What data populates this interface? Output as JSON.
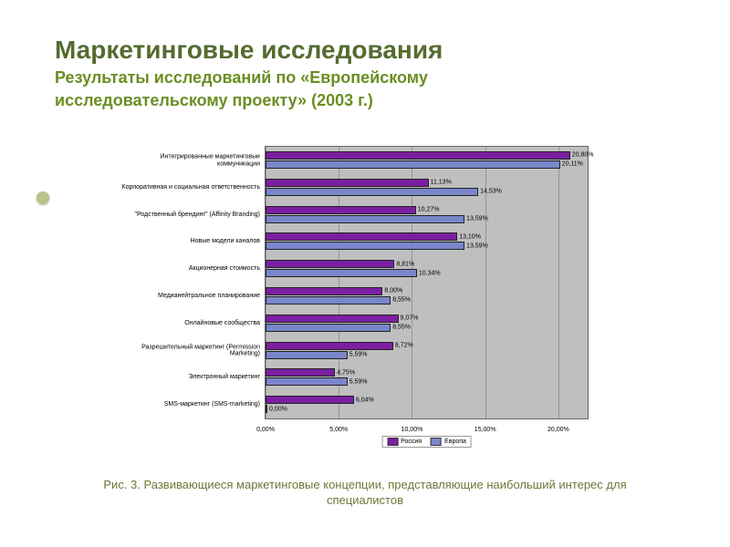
{
  "header": {
    "title": "Маркетинговые исследования",
    "subtitle_line1": "Результаты исследований по «Европейскому",
    "subtitle_line2": "исследовательскому проекту» (2003 г.)"
  },
  "caption": {
    "line1": "Рис. 3. Развивающиеся маркетинговые концепции, представляющие наибольший интерес для",
    "line2": "специалистов"
  },
  "chart": {
    "type": "bar",
    "orientation": "horizontal",
    "background_color": "#bfbfc0",
    "grid_color": "#7a7a7a",
    "xmax": 22.0,
    "xtick_step": 5.0,
    "xtick_labels": [
      "0,00%",
      "5,00%",
      "10,00%",
      "15,00%",
      "20,00%"
    ],
    "series": [
      {
        "name": "Россия",
        "color": "#7b1fa2"
      },
      {
        "name": "Европа",
        "color": "#7986cb"
      }
    ],
    "categories": [
      {
        "label": "Интегрированные маркетинговые коммуникации",
        "bars": [
          {
            "series": 0,
            "value": 20.8,
            "label": "20,80%"
          },
          {
            "series": 1,
            "value": 20.11,
            "label": "20,11%"
          }
        ]
      },
      {
        "label": "Корпоративная и социальная ответственность",
        "bars": [
          {
            "series": 0,
            "value": 11.13,
            "label": "11,13%"
          },
          {
            "series": 1,
            "value": 14.53,
            "label": "14,53%"
          }
        ]
      },
      {
        "label": "\"Родственный брендинг\" (Affinity Branding)",
        "bars": [
          {
            "series": 0,
            "value": 10.27,
            "label": "10,27%"
          },
          {
            "series": 1,
            "value": 13.59,
            "label": "13,59%"
          }
        ]
      },
      {
        "label": "Новые модели каналов",
        "bars": [
          {
            "series": 0,
            "value": 13.1,
            "label": "13,10%"
          },
          {
            "series": 1,
            "value": 13.59,
            "label": "13,59%"
          }
        ]
      },
      {
        "label": "Акционерная стоимость",
        "bars": [
          {
            "series": 0,
            "value": 8.81,
            "label": "8,81%"
          },
          {
            "series": 1,
            "value": 10.34,
            "label": "10,34%"
          }
        ]
      },
      {
        "label": "Медианейтральное планирование",
        "bars": [
          {
            "series": 0,
            "value": 8.0,
            "label": "8,00%"
          },
          {
            "series": 1,
            "value": 8.55,
            "label": "8,55%"
          }
        ]
      },
      {
        "label": "Онлайновые сообщества",
        "bars": [
          {
            "series": 0,
            "value": 9.07,
            "label": "9,07%"
          },
          {
            "series": 1,
            "value": 8.55,
            "label": "8,55%"
          }
        ]
      },
      {
        "label": "Разрешительный маркетинг (Permission Marketing)",
        "bars": [
          {
            "series": 0,
            "value": 8.72,
            "label": "8,72%"
          },
          {
            "series": 1,
            "value": 5.59,
            "label": "5,59%"
          }
        ]
      },
      {
        "label": "Электронный маркетинг",
        "bars": [
          {
            "series": 0,
            "value": 4.75,
            "label": "4,75%"
          },
          {
            "series": 1,
            "value": 5.59,
            "label": "5,59%"
          }
        ]
      },
      {
        "label": "SMS-маркетинг (SMS-marketing)",
        "bars": [
          {
            "series": 0,
            "value": 6.04,
            "label": "6,04%"
          },
          {
            "series": 1,
            "value": 0.0,
            "label": "0,00%"
          }
        ]
      }
    ]
  }
}
